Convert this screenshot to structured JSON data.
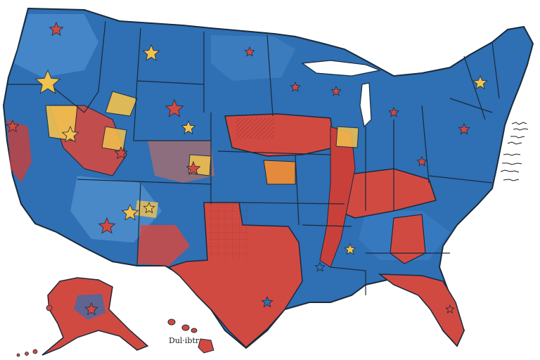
{
  "map": {
    "colors": {
      "background": "#ffffff",
      "blue": "#2f6fb3",
      "blue_dark": "#1d4f8e",
      "blue_light": "#5b9bd5",
      "red": "#d14a42",
      "red_dark": "#a8322d",
      "yellow": "#f2c24f",
      "border": "#1a2a3a"
    },
    "labels": {
      "hawaii_scribble": "Dul·ibtr"
    },
    "icons": [
      "star-icon"
    ]
  }
}
